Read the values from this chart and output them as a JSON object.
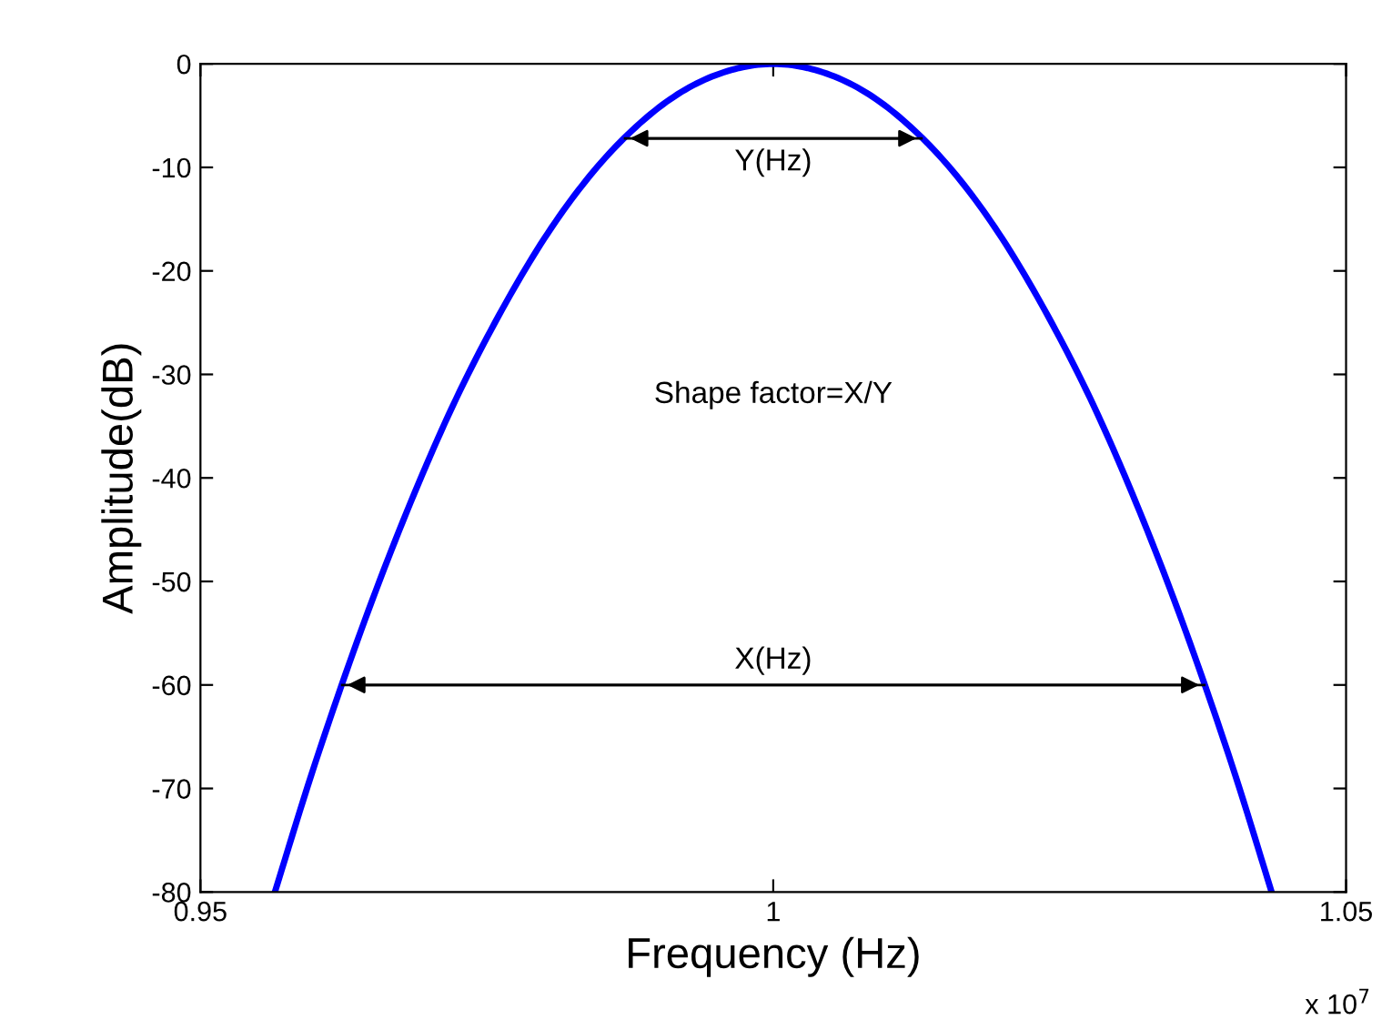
{
  "chart_data": {
    "type": "line",
    "xlabel": "Frequency (Hz)",
    "ylabel": "Amplitude(dB)",
    "x": [
      0.9565,
      0.96,
      0.964,
      0.968,
      0.972,
      0.976,
      0.98,
      0.984,
      0.988,
      0.992,
      0.996,
      1.0,
      1.004,
      1.008,
      1.012,
      1.016,
      1.02,
      1.024,
      1.028,
      1.032,
      1.036,
      1.04,
      1.0435
    ],
    "series": [
      {
        "color": "#0000ff",
        "values": [
          -80.0,
          -67.6,
          -54.8,
          -43.3,
          -33.1,
          -24.4,
          -16.9,
          -10.8,
          -6.1,
          -2.7,
          -0.7,
          0.0,
          -0.7,
          -2.7,
          -6.1,
          -10.8,
          -16.9,
          -24.4,
          -33.1,
          -43.3,
          -54.8,
          -67.6,
          -80.0
        ]
      }
    ],
    "annotations": [
      "Shape factor=X/Y",
      "x 10$^{7}$"
    ],
    "ref_lines": [
      {
        "axis": "y",
        "value": -7.2,
        "label": "Y(Hz)"
      },
      {
        "axis": "y",
        "value": -60,
        "label": "X(Hz)"
      }
    ],
    "xlim": [
      0.95,
      1.05
    ],
    "xticks": [
      0.95,
      1,
      1.05
    ],
    "ylim": [
      -80,
      0
    ],
    "yticks": [
      -80,
      -70,
      -60,
      -50,
      -40,
      -30,
      -20,
      -10,
      0
    ],
    "grid": false,
    "legend": false,
    "marker": "none",
    "line_style": "solid"
  }
}
